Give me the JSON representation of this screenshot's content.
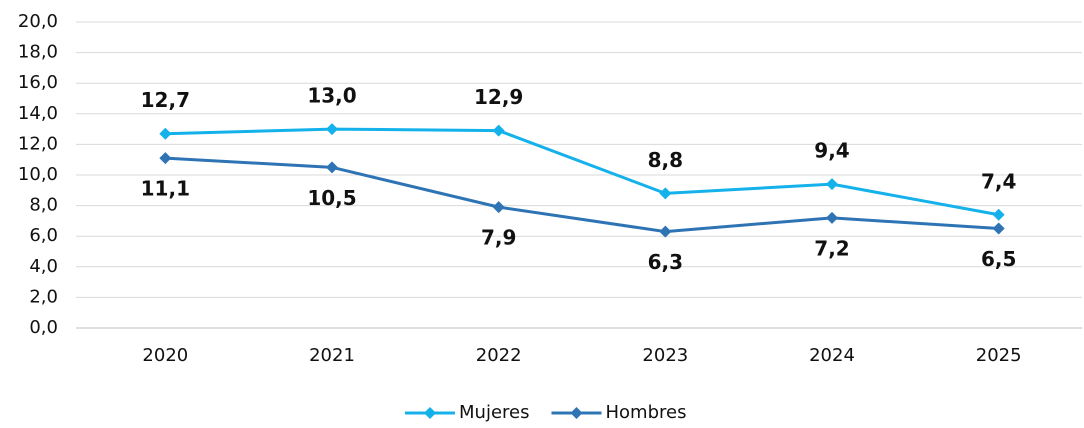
{
  "chart_data": {
    "type": "line",
    "categories": [
      "2020",
      "2021",
      "2022",
      "2023",
      "2024",
      "2025"
    ],
    "series": [
      {
        "name": "Mujeres",
        "color": "#14b1ea",
        "values": [
          12.7,
          13.0,
          12.9,
          8.8,
          9.4,
          7.4
        ],
        "value_labels": [
          "12,7",
          "13,0",
          "12,9",
          "8,8",
          "9,4",
          "7,4"
        ]
      },
      {
        "name": "Hombres",
        "color": "#2e74b5",
        "values": [
          11.1,
          10.5,
          7.9,
          6.3,
          7.2,
          6.5
        ],
        "value_labels": [
          "11,1",
          "10,5",
          "7,9",
          "6,3",
          "7,2",
          "6,5"
        ]
      }
    ],
    "ylim": [
      0,
      20
    ],
    "yticks": [
      {
        "value": 0,
        "label": "0,0"
      },
      {
        "value": 2,
        "label": "2,0"
      },
      {
        "value": 4,
        "label": "4,0"
      },
      {
        "value": 6,
        "label": "6,0"
      },
      {
        "value": 8,
        "label": "8,0"
      },
      {
        "value": 10,
        "label": "10,0"
      },
      {
        "value": 12,
        "label": "12,0"
      },
      {
        "value": 14,
        "label": "14,0"
      },
      {
        "value": 16,
        "label": "16,0"
      },
      {
        "value": 18,
        "label": "18,0"
      },
      {
        "value": 20,
        "label": "20,0"
      }
    ],
    "grid": true,
    "legend": "bottom"
  }
}
